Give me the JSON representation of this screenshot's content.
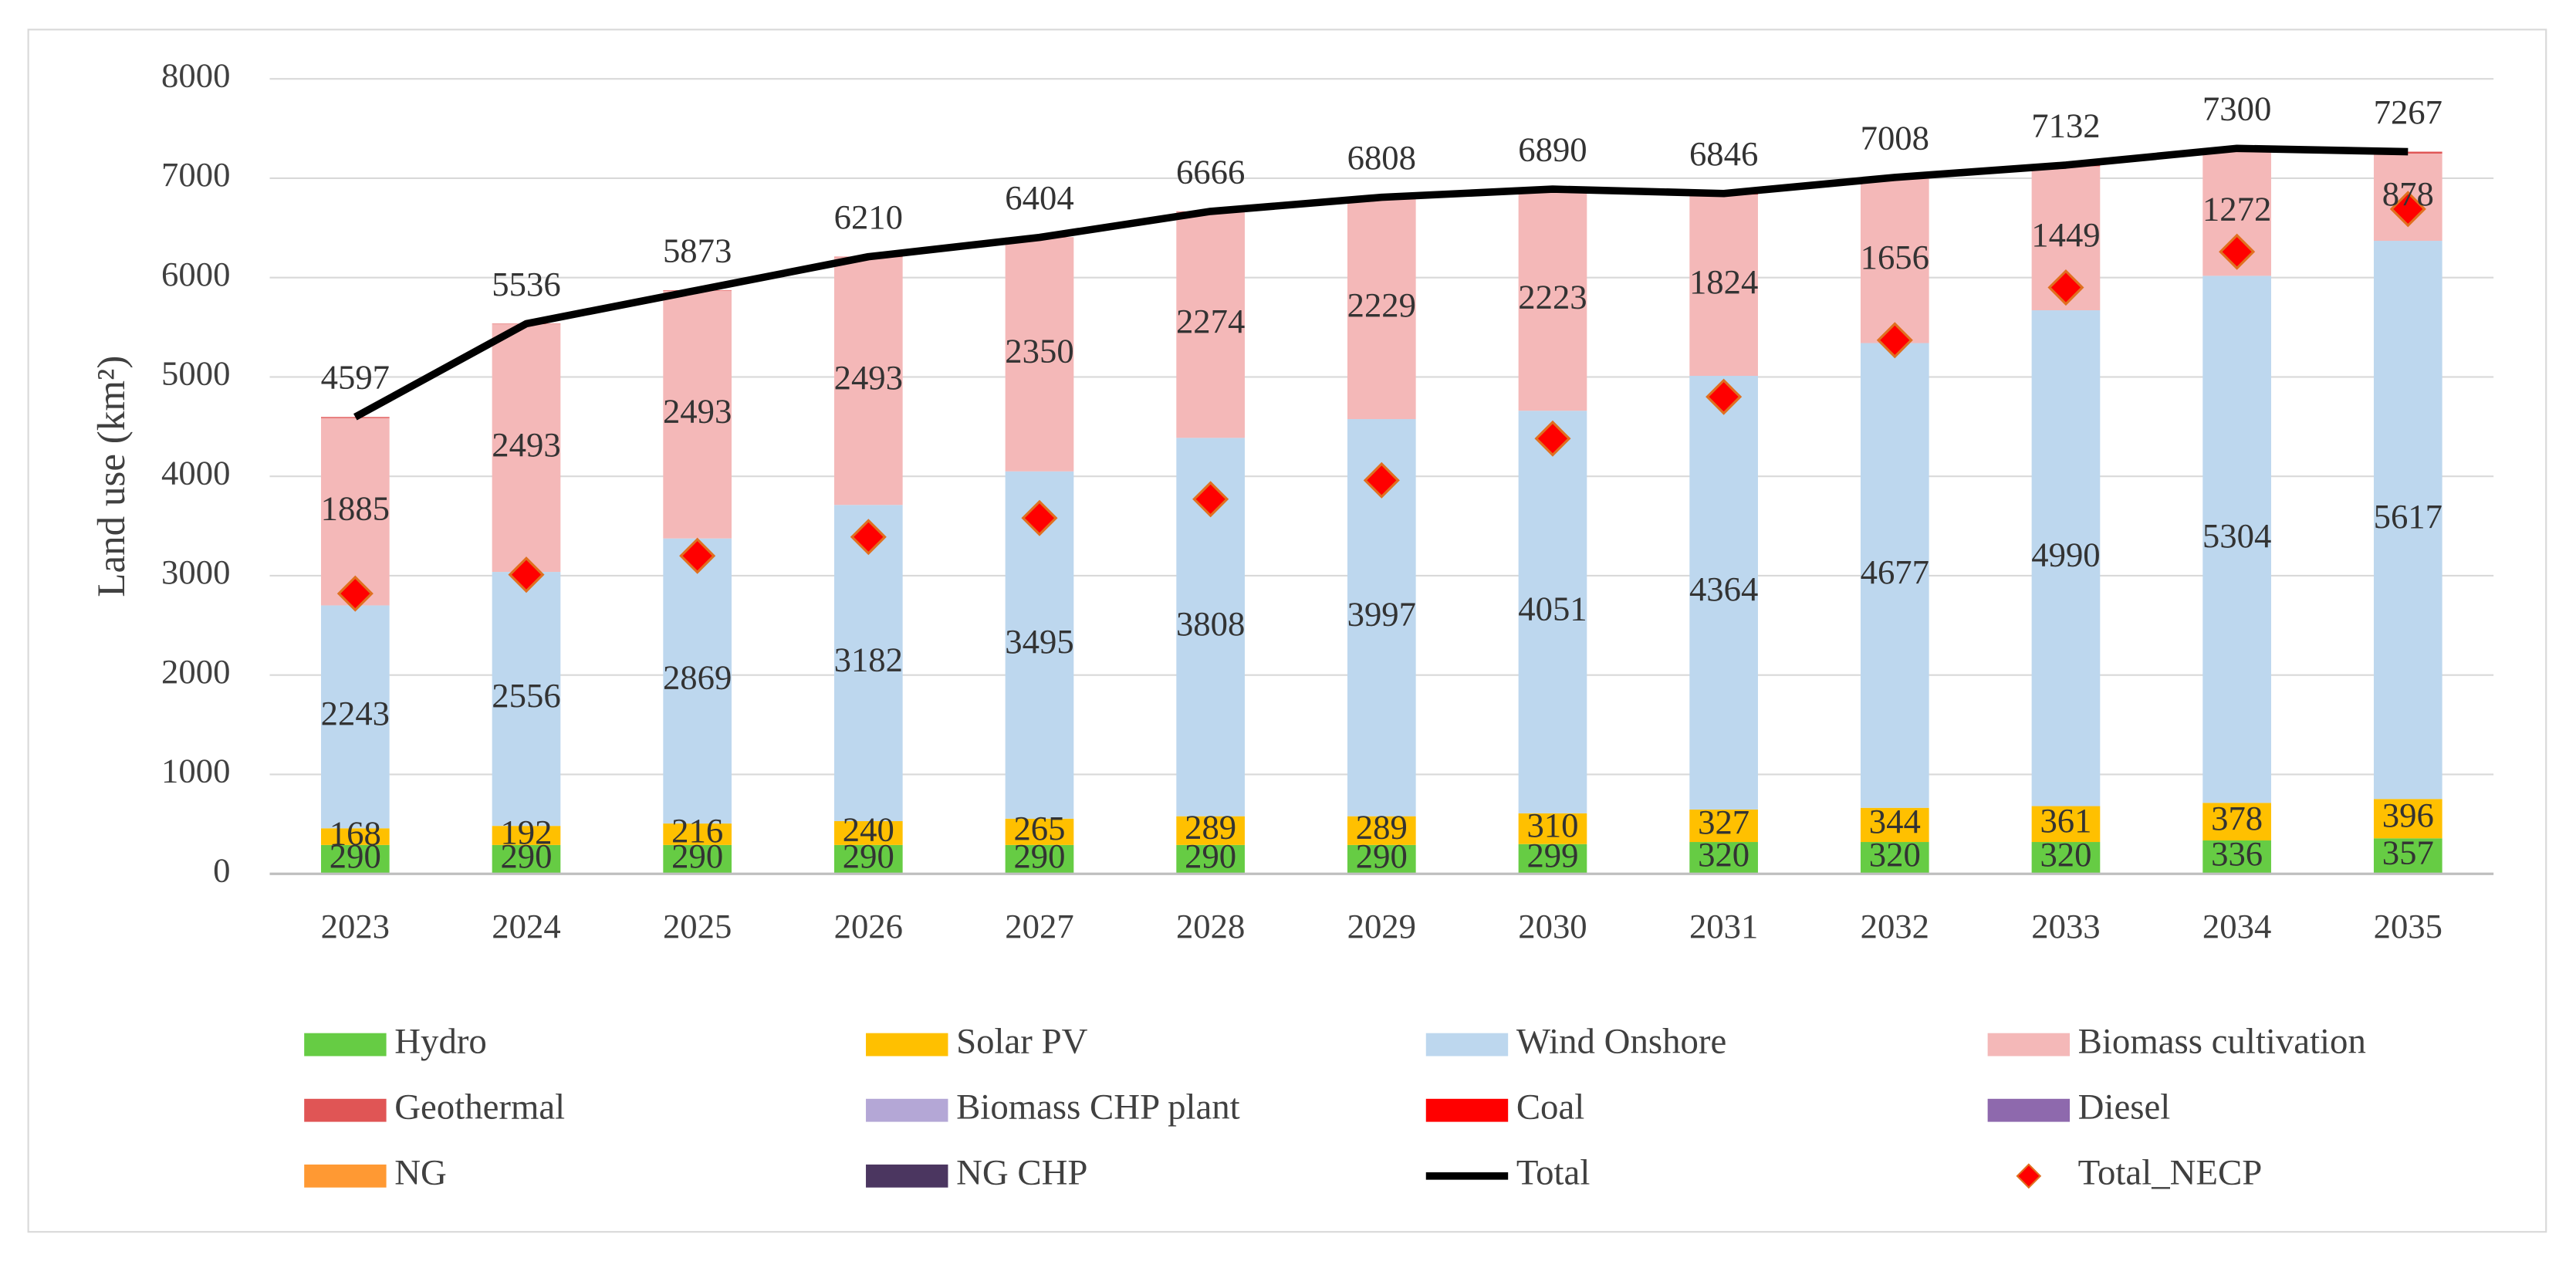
{
  "chart_data": {
    "type": "bar",
    "stacked": true,
    "y_axis_title": "Land use (km²)",
    "categories": [
      "2023",
      "2024",
      "2025",
      "2026",
      "2027",
      "2028",
      "2029",
      "2030",
      "2031",
      "2032",
      "2033",
      "2034",
      "2035"
    ],
    "ylim": [
      0,
      8000
    ],
    "yticks": [
      0,
      1000,
      2000,
      3000,
      4000,
      5000,
      6000,
      7000,
      8000
    ],
    "grid": true,
    "legend": "bottom",
    "series": [
      {
        "name": "Hydro",
        "color": "#66cc44",
        "data_labels": true,
        "values": [
          290,
          290,
          290,
          290,
          290,
          290,
          290,
          299,
          320,
          320,
          320,
          336,
          357
        ]
      },
      {
        "name": "Solar PV",
        "color": "#ffc000",
        "data_labels": true,
        "values": [
          168,
          192,
          216,
          240,
          265,
          289,
          289,
          310,
          327,
          344,
          361,
          378,
          396
        ]
      },
      {
        "name": "Wind Onshore",
        "color": "#bdd7ee",
        "data_labels": true,
        "values": [
          2243,
          2556,
          2869,
          3182,
          3495,
          3808,
          3997,
          4051,
          4364,
          4677,
          4990,
          5304,
          5617
        ]
      },
      {
        "name": "Biomass cultivation",
        "color": "#f4b8b8",
        "data_labels": true,
        "values": [
          1885,
          2493,
          2493,
          2493,
          2350,
          2274,
          2229,
          2223,
          1824,
          1656,
          1449,
          1272,
          878
        ]
      },
      {
        "name": "Geothermal",
        "color": "#e05555",
        "data_labels": false,
        "values": [
          11,
          5,
          5,
          5,
          4,
          5,
          3,
          7,
          11,
          11,
          12,
          10,
          19
        ]
      },
      {
        "name": "Biomass CHP plant",
        "color": "#b4a7d6",
        "data_labels": false,
        "values": [
          0,
          0,
          0,
          0,
          0,
          0,
          0,
          0,
          0,
          0,
          0,
          0,
          0
        ]
      },
      {
        "name": "Coal",
        "color": "#ff0000",
        "data_labels": false,
        "values": [
          0,
          0,
          0,
          0,
          0,
          0,
          0,
          0,
          0,
          0,
          0,
          0,
          0
        ]
      },
      {
        "name": "Diesel",
        "color": "#8e69ad",
        "data_labels": false,
        "values": [
          0,
          0,
          0,
          0,
          0,
          0,
          0,
          0,
          0,
          0,
          0,
          0,
          0
        ]
      },
      {
        "name": "NG",
        "color": "#ff9933",
        "data_labels": false,
        "values": [
          0,
          0,
          0,
          0,
          0,
          0,
          0,
          0,
          0,
          0,
          0,
          0,
          0
        ]
      },
      {
        "name": "NG CHP",
        "color": "#4b3660",
        "data_labels": false,
        "values": [
          0,
          0,
          0,
          0,
          0,
          0,
          0,
          0,
          0,
          0,
          0,
          0,
          0
        ]
      },
      {
        "name": "Total",
        "type": "line",
        "color": "#000000",
        "data_labels": true,
        "values": [
          4597,
          5536,
          5873,
          6210,
          6404,
          6666,
          6808,
          6890,
          6846,
          7008,
          7132,
          7300,
          7267
        ]
      },
      {
        "name": "Total_NECP",
        "type": "scatter",
        "color": "#ff0000",
        "data_labels": false,
        "values": [
          2820,
          3010,
          3200,
          3390,
          3580,
          3770,
          3960,
          4380,
          4800,
          5370,
          5900,
          6260,
          6690
        ]
      }
    ]
  }
}
